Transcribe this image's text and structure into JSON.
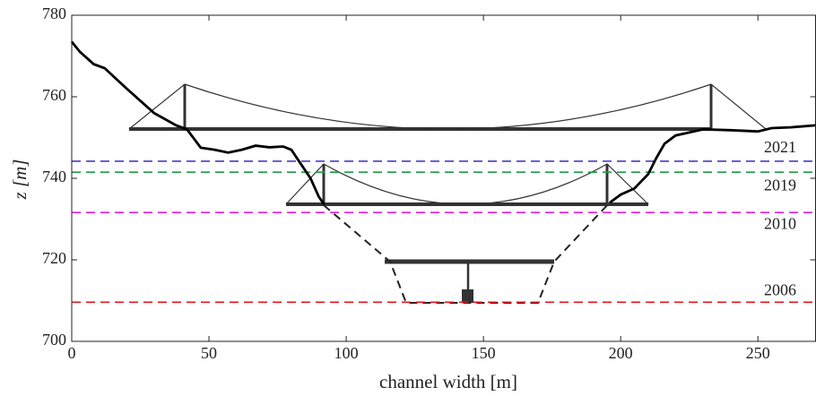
{
  "chart_data": {
    "type": "line",
    "xlabel": "channel width [m]",
    "ylabel": "z [m]",
    "xlim": [
      0,
      271
    ],
    "ylim": [
      700,
      780
    ],
    "xticks": [
      0,
      50,
      100,
      150,
      200,
      250
    ],
    "yticks": [
      700,
      720,
      740,
      760,
      780
    ],
    "series": [
      {
        "color": "#000000",
        "x": [
          0,
          3,
          8,
          12,
          20,
          30,
          38,
          42,
          47,
          52,
          57,
          62,
          67,
          72,
          77,
          80,
          83,
          87,
          90,
          92,
          144,
          196,
          200,
          205,
          210,
          213,
          216,
          220,
          230,
          240,
          250,
          255,
          262,
          271
        ],
        "values": [
          773.5,
          771,
          768,
          767,
          762,
          756,
          753,
          752,
          747.5,
          747,
          746.3,
          747,
          748,
          747.6,
          747.8,
          747,
          744,
          740,
          735.5,
          733.5,
          null,
          734,
          736,
          737.5,
          741,
          745,
          748.5,
          750.5,
          752,
          751.8,
          751.5,
          752.3,
          752.5,
          753
        ]
      }
    ],
    "hlines": [
      {
        "label": "2021",
        "value": 744.2,
        "color": "#4b3cc4"
      },
      {
        "label": "2019",
        "value": 741.5,
        "color": "#1f9a4a"
      },
      {
        "label": "2010",
        "value": 731.6,
        "color": "#e21ee2"
      },
      {
        "label": "2006",
        "value": 709.6,
        "color": "#e8141e"
      }
    ]
  }
}
